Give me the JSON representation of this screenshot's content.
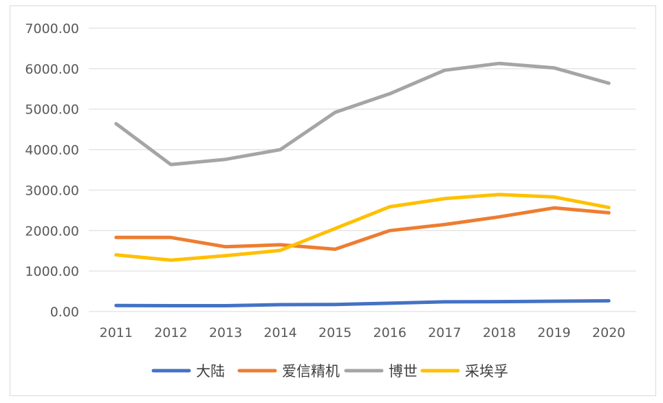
{
  "chart_data": {
    "type": "line",
    "title": "",
    "xlabel": "",
    "ylabel": "",
    "categories": [
      "2011",
      "2012",
      "2013",
      "2014",
      "2015",
      "2016",
      "2017",
      "2018",
      "2019",
      "2020"
    ],
    "ylim": [
      0,
      7000
    ],
    "ytick_step": 1000,
    "ytick_labels": [
      "0.00",
      "1000.00",
      "2000.00",
      "3000.00",
      "4000.00",
      "5000.00",
      "6000.00",
      "7000.00"
    ],
    "grid": true,
    "legend_position": "bottom",
    "series": [
      {
        "name": "大陆",
        "color": "#4472C4",
        "values": [
          150,
          145,
          145,
          170,
          175,
          205,
          240,
          245,
          255,
          265
        ]
      },
      {
        "name": "爱信精机",
        "color": "#ED7D31",
        "values": [
          1830,
          1830,
          1600,
          1650,
          1540,
          2000,
          2150,
          2340,
          2560,
          2440
        ]
      },
      {
        "name": "博世",
        "color": "#A5A5A5",
        "values": [
          4640,
          3630,
          3760,
          4000,
          4920,
          5380,
          5960,
          6130,
          6020,
          5640
        ]
      },
      {
        "name": "采埃孚",
        "color": "#FFC000",
        "values": [
          1400,
          1270,
          1380,
          1510,
          2050,
          2590,
          2790,
          2890,
          2830,
          2570
        ]
      }
    ]
  }
}
